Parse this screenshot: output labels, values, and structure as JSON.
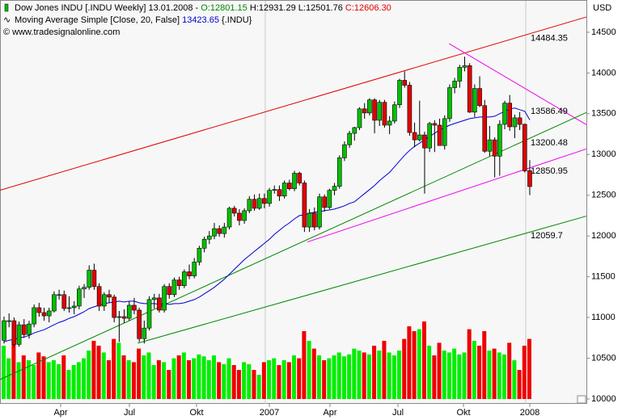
{
  "chart_data": {
    "type": "candlestick",
    "legend": {
      "instrument": "Dow Jones INDU [.INDU  Weekly] 13.01.2008 -",
      "open": "O:12801.15",
      "high": "H:12931.29",
      "low": "L:12501.76",
      "close": "C:12606.30"
    },
    "ma": {
      "name": "Moving Average Simple [Close, 20, False]",
      "last": 13423.65,
      "suffix": "{.INDU}",
      "color": "#0000cc",
      "values": [
        10700,
        10720,
        10730,
        10750,
        10760,
        10780,
        10810,
        10830,
        10850,
        10880,
        10910,
        10940,
        10960,
        10990,
        11010,
        11040,
        11070,
        11110,
        11130,
        11150,
        11170,
        11180,
        11190,
        11200,
        11190,
        11200,
        11200,
        11180,
        11170,
        11170,
        11170,
        11160,
        11170,
        11160,
        11170,
        11170,
        11180,
        11200,
        11220,
        11250,
        11290,
        11330,
        11370,
        11420,
        11470,
        11530,
        11590,
        11650,
        11710,
        11760,
        11810,
        11860,
        11910,
        11960,
        12020,
        12070,
        12120,
        12160,
        12210,
        12250,
        12260,
        12280,
        12290,
        12300,
        12310,
        12320,
        12330,
        12350,
        12370,
        12400,
        12420,
        12470,
        12520,
        12570,
        12620,
        12680,
        12730,
        12780,
        12850,
        12920,
        12990,
        13050,
        13100,
        13140,
        13180,
        13220,
        13260,
        13300,
        13330,
        13360,
        13380,
        13400,
        13420,
        13440,
        13450,
        13460,
        13460,
        13460,
        13470,
        13500,
        13530,
        13560,
        13570,
        13550,
        13530,
        13423.65
      ]
    },
    "copyright": "© www.tradesignalonline.com",
    "currency": "USD",
    "up_color": "#00c000",
    "down_color": "#e00000",
    "volume_up_color": "#00ee00",
    "volume_down_color": "#ee0000",
    "ohlc": [
      [
        10720,
        11010,
        10680,
        10960
      ],
      [
        10960,
        11050,
        10880,
        10960
      ],
      [
        10960,
        11000,
        10640,
        10670
      ],
      [
        10670,
        10950,
        10640,
        10910
      ],
      [
        10910,
        10980,
        10750,
        10790
      ],
      [
        10790,
        10960,
        10740,
        10920
      ],
      [
        10920,
        11160,
        10880,
        11120
      ],
      [
        11120,
        11180,
        11010,
        11060
      ],
      [
        11060,
        11120,
        10960,
        11020
      ],
      [
        11020,
        11120,
        10940,
        11080
      ],
      [
        11080,
        11320,
        11060,
        11280
      ],
      [
        11280,
        11340,
        11220,
        11280
      ],
      [
        11280,
        11330,
        11080,
        11110
      ],
      [
        11110,
        11260,
        11060,
        11120
      ],
      [
        11120,
        11200,
        11040,
        11140
      ],
      [
        11140,
        11390,
        11100,
        11350
      ],
      [
        11350,
        11410,
        11240,
        11370
      ],
      [
        11370,
        11640,
        11340,
        11580
      ],
      [
        11580,
        11660,
        11340,
        11380
      ],
      [
        11380,
        11420,
        11080,
        11140
      ],
      [
        11140,
        11310,
        11080,
        11280
      ],
      [
        11280,
        11340,
        11180,
        11250
      ],
      [
        11250,
        11280,
        10940,
        11000
      ],
      [
        11000,
        11080,
        10700,
        11010
      ],
      [
        11010,
        11100,
        10930,
        10990
      ],
      [
        10990,
        11200,
        10960,
        11150
      ],
      [
        11150,
        11240,
        11040,
        11090
      ],
      [
        11090,
        11120,
        10700,
        10740
      ],
      [
        10740,
        10960,
        10680,
        10870
      ],
      [
        10870,
        11260,
        10840,
        11220
      ],
      [
        11220,
        11290,
        11110,
        11240
      ],
      [
        11240,
        11290,
        11060,
        11090
      ],
      [
        11090,
        11410,
        11060,
        11380
      ],
      [
        11380,
        11420,
        11230,
        11280
      ],
      [
        11280,
        11490,
        11250,
        11460
      ],
      [
        11460,
        11500,
        11340,
        11390
      ],
      [
        11390,
        11590,
        11360,
        11560
      ],
      [
        11560,
        11650,
        11470,
        11510
      ],
      [
        11510,
        11730,
        11480,
        11680
      ],
      [
        11680,
        11880,
        11640,
        11850
      ],
      [
        11850,
        11990,
        11800,
        11960
      ],
      [
        11960,
        12060,
        11900,
        12000
      ],
      [
        12000,
        12160,
        11960,
        12090
      ],
      [
        12090,
        12130,
        11990,
        12030
      ],
      [
        12030,
        12160,
        11980,
        12110
      ],
      [
        12110,
        12360,
        12080,
        12340
      ],
      [
        12340,
        12370,
        12240,
        12280
      ],
      [
        12280,
        12330,
        12130,
        12190
      ],
      [
        12190,
        12340,
        12150,
        12310
      ],
      [
        12310,
        12490,
        12280,
        12450
      ],
      [
        12450,
        12510,
        12310,
        12340
      ],
      [
        12340,
        12520,
        12320,
        12460
      ],
      [
        12460,
        12520,
        12340,
        12400
      ],
      [
        12400,
        12590,
        12360,
        12560
      ],
      [
        12560,
        12620,
        12520,
        12570
      ],
      [
        12570,
        12620,
        12430,
        12490
      ],
      [
        12490,
        12680,
        12460,
        12650
      ],
      [
        12650,
        12690,
        12560,
        12580
      ],
      [
        12580,
        12800,
        12550,
        12770
      ],
      [
        12770,
        12790,
        12620,
        12650
      ],
      [
        12650,
        12680,
        12050,
        12110
      ],
      [
        12110,
        12330,
        12050,
        12280
      ],
      [
        12280,
        12350,
        12070,
        12110
      ],
      [
        12110,
        12520,
        12080,
        12480
      ],
      [
        12480,
        12510,
        12300,
        12350
      ],
      [
        12350,
        12580,
        12330,
        12560
      ],
      [
        12560,
        12650,
        12500,
        12610
      ],
      [
        12610,
        12990,
        12580,
        12960
      ],
      [
        12960,
        13160,
        12920,
        13120
      ],
      [
        13120,
        13290,
        13080,
        13260
      ],
      [
        13260,
        13340,
        13170,
        13330
      ],
      [
        13330,
        13580,
        13300,
        13560
      ],
      [
        13560,
        13630,
        13440,
        13510
      ],
      [
        13510,
        13690,
        13480,
        13670
      ],
      [
        13670,
        13690,
        13260,
        13420
      ],
      [
        13420,
        13670,
        13350,
        13640
      ],
      [
        13640,
        13670,
        13330,
        13360
      ],
      [
        13360,
        13470,
        13250,
        13410
      ],
      [
        13410,
        13650,
        13380,
        13610
      ],
      [
        13610,
        13930,
        13570,
        13910
      ],
      [
        13910,
        14020,
        13820,
        13850
      ],
      [
        13850,
        13890,
        13230,
        13270
      ],
      [
        13270,
        13390,
        13090,
        13180
      ],
      [
        13180,
        13660,
        13160,
        13240
      ],
      [
        13240,
        13280,
        12520,
        13080
      ],
      [
        13080,
        13400,
        13030,
        13380
      ],
      [
        13380,
        13420,
        13030,
        13360
      ],
      [
        13360,
        13440,
        13110,
        13110
      ],
      [
        13110,
        13480,
        13060,
        13440
      ],
      [
        13440,
        13860,
        13400,
        13820
      ],
      [
        13820,
        13940,
        13750,
        13900
      ],
      [
        13900,
        14100,
        13820,
        14070
      ],
      [
        14070,
        14200,
        14020,
        14090
      ],
      [
        14090,
        14120,
        13510,
        13520
      ],
      [
        13520,
        13860,
        13460,
        13810
      ],
      [
        13810,
        13960,
        13580,
        13600
      ],
      [
        13600,
        13670,
        13020,
        13040
      ],
      [
        13040,
        13350,
        12980,
        13180
      ],
      [
        13180,
        13210,
        12720,
        12980
      ],
      [
        12980,
        13420,
        12740,
        13370
      ],
      [
        13370,
        13660,
        13310,
        13630
      ],
      [
        13630,
        13730,
        13290,
        13340
      ],
      [
        13340,
        13490,
        13200,
        13450
      ],
      [
        13450,
        13520,
        13300,
        13370
      ],
      [
        13370,
        13380,
        12780,
        12800
      ],
      [
        12801.15,
        12931.29,
        12501.76,
        12606.3
      ]
    ],
    "volume": [
      55,
      42,
      60,
      38,
      45,
      40,
      35,
      48,
      44,
      38,
      40,
      36,
      45,
      30,
      35,
      38,
      42,
      50,
      60,
      55,
      48,
      40,
      62,
      58,
      45,
      40,
      38,
      52,
      45,
      48,
      35,
      40,
      38,
      30,
      42,
      45,
      48,
      40,
      42,
      46,
      44,
      40,
      45,
      38,
      36,
      42,
      35,
      30,
      38,
      36,
      30,
      25,
      38,
      40,
      42,
      35,
      40,
      38,
      45,
      42,
      70,
      60,
      52,
      45,
      40,
      42,
      45,
      48,
      44,
      46,
      52,
      50,
      48,
      46,
      55,
      50,
      60,
      48,
      45,
      50,
      62,
      75,
      70,
      72,
      80,
      55,
      45,
      58,
      50,
      48,
      52,
      46,
      48,
      72,
      60,
      55,
      70,
      50,
      52,
      48,
      46,
      58,
      40,
      30,
      55,
      62
    ],
    "trendlines": [
      {
        "color": "#e00000",
        "points": [
          [
            -0.8,
            12562
          ],
          [
            116.3,
            14687
          ]
        ],
        "label": 14484.35
      },
      {
        "color": "#ee00ee",
        "points": [
          [
            88.9,
            14360
          ],
          [
            116.3,
            13366
          ]
        ],
        "label": 13586.49
      },
      {
        "color": "#008800",
        "points": [
          [
            -0.8,
            10238
          ],
          [
            116.3,
            13515
          ]
        ],
        "label": 13200.48
      },
      {
        "color": "#ee00ee",
        "points": [
          [
            60.6,
            11927
          ],
          [
            116.3,
            13068
          ]
        ],
        "label": 12850.95
      },
      {
        "color": "#008800",
        "points": [
          [
            26.7,
            10685
          ],
          [
            116.3,
            12244
          ]
        ],
        "label": 12059.7
      }
    ],
    "xticks": [
      "Apr",
      "Jul",
      "Okt",
      "2007",
      "Apr",
      "Jul",
      "Okt",
      "2008"
    ],
    "ylim": [
      9940,
      14886
    ],
    "yticks": [
      10000,
      10500,
      11000,
      11500,
      12000,
      12500,
      13000,
      13500,
      14000,
      14500
    ]
  }
}
